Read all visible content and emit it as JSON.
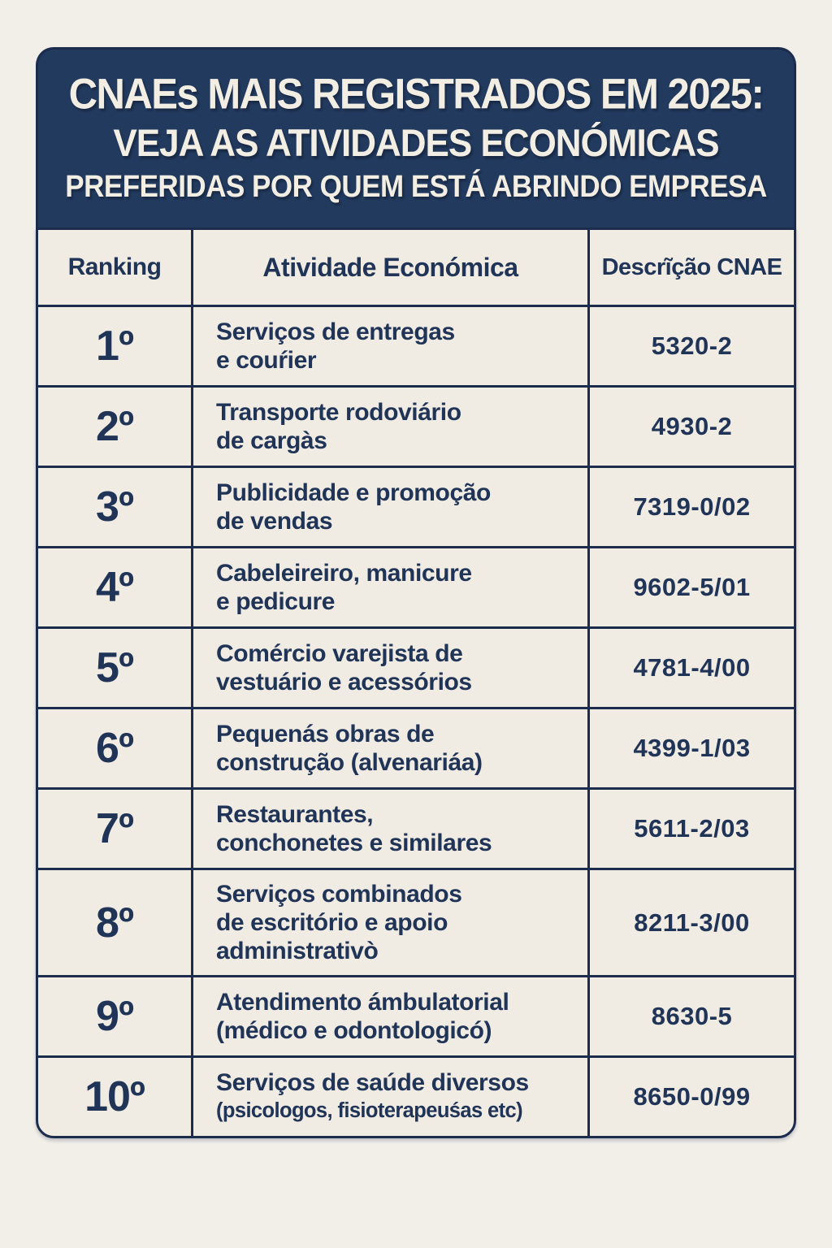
{
  "page": {
    "background": "#f2efe9"
  },
  "banner": {
    "background": "#223a5e",
    "text_color": "#f3eee3",
    "line1": "CNAEs MAIS REGISTRADOS EM 2025:",
    "line2": "VEJA AS ATIVIDADES ECONÓMICAS",
    "line3": "PREFERIDAS POR QUEM ESTÁ ABRINDO EMPRESA"
  },
  "table": {
    "border_color": "#1b2c4d",
    "cell_background": "#f1ece3",
    "text_color": "#203457",
    "columns": {
      "ranking": "Ranking",
      "activity": "Atividade Económica",
      "code": "Descrĩção CNAE"
    },
    "rows": [
      {
        "rank": "1º",
        "activity_lines": [
          "Serviços de entregas",
          "e couŕier"
        ],
        "code": "5320-2"
      },
      {
        "rank": "2º",
        "activity_lines": [
          "Transporte rodoviário",
          "de cargàs"
        ],
        "code": "4930-2"
      },
      {
        "rank": "3º",
        "activity_lines": [
          "Publicidade e promoção",
          "de vendas"
        ],
        "code": "7319-0/02"
      },
      {
        "rank": "4º",
        "activity_lines": [
          "Cabeleireiro, manicure",
          "e pedicure"
        ],
        "code": "9602-5/01"
      },
      {
        "rank": "5º",
        "activity_lines": [
          "Comércio varejista de",
          "vestuário e acessórios"
        ],
        "code": "4781-4/00"
      },
      {
        "rank": "6º",
        "activity_lines": [
          "Pequenás obras de",
          "construção (alvenariáa)"
        ],
        "code": "4399-1/03"
      },
      {
        "rank": "7º",
        "activity_lines": [
          "Restaurantes,",
          "conchonetes e similares"
        ],
        "code": "5611-2/03"
      },
      {
        "rank": "8º",
        "activity_lines": [
          "Serviços combinados",
          "de escritório e apoio",
          "administrativò"
        ],
        "code": "8211-3/00"
      },
      {
        "rank": "9º",
        "activity_lines": [
          "Atendimento ámbulatorial",
          "(médico e odontologicó)"
        ],
        "code": "8630-5"
      },
      {
        "rank": "10º",
        "activity_lines": [
          "Serviços de saúde diversos"
        ],
        "activity_small_line": "(psicologos, fisioterapeuśas etc)",
        "code": "8650-0/99"
      }
    ]
  }
}
